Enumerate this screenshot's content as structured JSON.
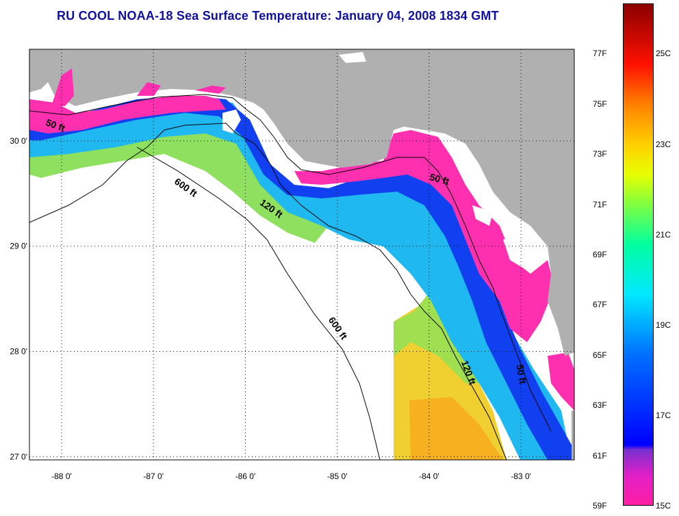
{
  "title": "RU COOL  NOAA-18  Sea Surface Temperature:  January 04, 2008 1834 GMT",
  "map": {
    "lon_range": [
      -88.35,
      -82.42
    ],
    "lat_range": [
      26.97,
      30.87
    ],
    "lon_ticks": [
      {
        "value": -88,
        "label": "-88 0'"
      },
      {
        "value": -87,
        "label": "-87 0'"
      },
      {
        "value": -86,
        "label": "-86 0'"
      },
      {
        "value": -85,
        "label": "-85 0'"
      },
      {
        "value": -84,
        "label": "-84 0'"
      },
      {
        "value": -83,
        "label": "-83 0'"
      }
    ],
    "lat_ticks": [
      {
        "value": 30,
        "label": "30 0'"
      },
      {
        "value": 29,
        "label": "29 0'"
      },
      {
        "value": 28,
        "label": "28 0'"
      },
      {
        "value": 27,
        "label": "27 0'"
      }
    ],
    "land_color": "#b0b0b0",
    "no_data_color": "#ffffff",
    "contour_labels": [
      {
        "text": "50 ft",
        "lon": -88.18,
        "lat": 30.15,
        "angle": 20
      },
      {
        "text": "600 ft",
        "lon": -86.78,
        "lat": 29.6,
        "angle": 35
      },
      {
        "text": "120 ft",
        "lon": -85.85,
        "lat": 29.4,
        "angle": 35
      },
      {
        "text": "50 ft",
        "lon": -84.0,
        "lat": 29.63,
        "angle": 15
      },
      {
        "text": "600 ft",
        "lon": -85.1,
        "lat": 28.3,
        "angle": 55
      },
      {
        "text": "120 ft",
        "lon": -83.65,
        "lat": 27.9,
        "angle": 70
      },
      {
        "text": "50 ft",
        "lon": -83.05,
        "lat": 27.87,
        "angle": 80
      }
    ]
  },
  "colorbar": {
    "range_f": [
      59,
      79
    ],
    "f_labels": [
      {
        "value": 77,
        "label": "77F"
      },
      {
        "value": 75,
        "label": "75F"
      },
      {
        "value": 73,
        "label": "73F"
      },
      {
        "value": 71,
        "label": "71F"
      },
      {
        "value": 69,
        "label": "69F"
      },
      {
        "value": 67,
        "label": "67F"
      },
      {
        "value": 65,
        "label": "65F"
      },
      {
        "value": 63,
        "label": "63F"
      },
      {
        "value": 61,
        "label": "61F"
      },
      {
        "value": 59,
        "label": "59F"
      }
    ],
    "c_labels": [
      {
        "value": 25,
        "label": "25C"
      },
      {
        "value": 23,
        "label": "23C"
      },
      {
        "value": 21,
        "label": "21C"
      },
      {
        "value": 19,
        "label": "19C"
      },
      {
        "value": 17,
        "label": "17C"
      },
      {
        "value": 15,
        "label": "15C"
      }
    ]
  }
}
